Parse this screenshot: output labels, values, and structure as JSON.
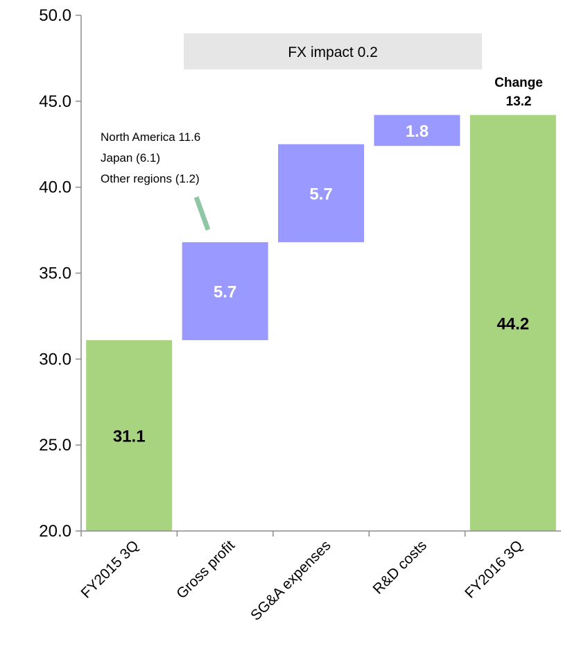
{
  "chart_data": {
    "type": "bar",
    "subtype": "waterfall",
    "categories": [
      "FY2015 3Q",
      "Gross profit",
      "SG&A expenses",
      "R&D costs",
      "FY2016 3Q"
    ],
    "bars": [
      {
        "category": "FY2015 3Q",
        "kind": "total",
        "start": 20.0,
        "end": 31.1,
        "label": "31.1"
      },
      {
        "category": "Gross profit",
        "kind": "increase",
        "start": 31.1,
        "end": 36.8,
        "label": "5.7"
      },
      {
        "category": "SG&A expenses",
        "kind": "increase",
        "start": 36.8,
        "end": 42.5,
        "label": "5.7"
      },
      {
        "category": "R&D costs",
        "kind": "increase",
        "start": 42.4,
        "end": 44.2,
        "label": "1.8"
      },
      {
        "category": "FY2016 3Q",
        "kind": "total",
        "start": 20.0,
        "end": 44.2,
        "label": "44.2"
      }
    ],
    "ylim": [
      20.0,
      50.0
    ],
    "yticks": [
      "20.0",
      "25.0",
      "30.0",
      "35.0",
      "40.0",
      "45.0",
      "50.0"
    ],
    "xlabel": "",
    "ylabel": "",
    "title": "",
    "grid": false,
    "colors": {
      "total": "#a9d47f",
      "increase": "#9999ff",
      "total_label": "#000000",
      "increase_label": "#ffffff",
      "fx_box": "#e6e6e6",
      "callout_line": "#8fc7a4",
      "axis": "#8c8c8c"
    },
    "annotations": {
      "gross_profit_note": [
        "North America 11.6",
        "Japan (6.1)",
        "Other regions (1.2)"
      ],
      "fx_box_text": "FX impact 0.2",
      "change_title": "Change",
      "change_value": "13.2"
    }
  }
}
